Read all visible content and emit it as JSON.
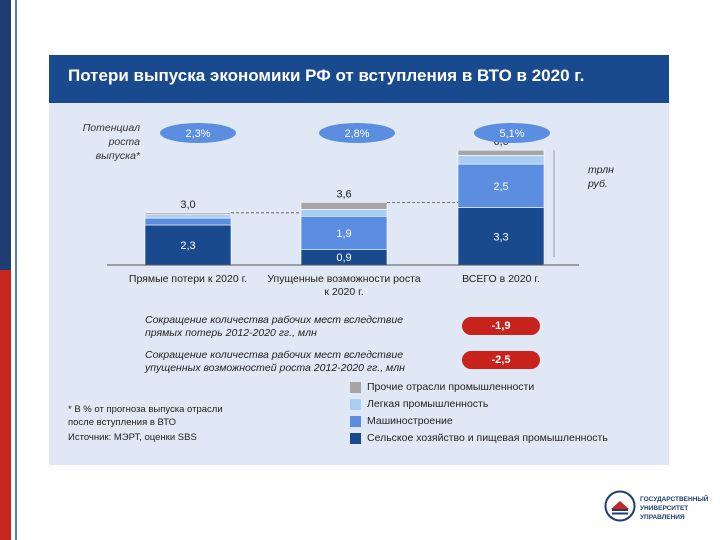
{
  "slide": {
    "title": "Потери выпуска экономики РФ от вступления в ВТО в 2020 г."
  },
  "chart_data": {
    "type": "bar",
    "stacked": true,
    "categories": [
      "Прямые потери к 2020 г.",
      "Упущенные возможности роста к 2020 г.",
      "ВСЕГО в 2020 г."
    ],
    "potential_label": "Потенциал роста выпуска*",
    "potential_values": [
      "2,3%",
      "2,8%",
      "5,1%"
    ],
    "totals": [
      "3,0",
      "3,6",
      "6,6"
    ],
    "unit": "трлн руб.",
    "series": [
      {
        "name": "Сельское хозяйство и пищевая промышленность",
        "values": [
          2.3,
          0.9,
          3.3
        ],
        "labels": [
          "2,3",
          "0,9",
          "3,3"
        ],
        "color": "#1a4a8e"
      },
      {
        "name": "Машиностроение",
        "values": [
          0.4,
          1.9,
          2.5
        ],
        "labels": [
          "",
          "1,9",
          "2,5"
        ],
        "color": "#5b8ee0"
      },
      {
        "name": "Легкая промышленность",
        "values": [
          0.2,
          0.4,
          0.5
        ],
        "labels": [
          "",
          "",
          ""
        ],
        "color": "#a9cdf3"
      },
      {
        "name": "Прочие отрасли промышленности",
        "values": [
          0.1,
          0.4,
          0.3
        ],
        "labels": [
          "",
          "",
          ""
        ],
        "color": "#a6a6a6"
      }
    ],
    "legend_position": "bottom-right"
  },
  "job_cuts": {
    "direct": {
      "text_line1": "Сокращение количества рабочих мест вследствие",
      "text_line2": "прямых потерь  2012-2020 гг., млн",
      "value": "-1,9"
    },
    "missed": {
      "text_line1": "Сокращение количества рабочих мест вследствие",
      "text_line2": "упущенных возможностей роста 2012-2020 гг., млн",
      "value": "-2,5"
    }
  },
  "footnotes": {
    "line1": "* В % от прогноза выпуска отрасли",
    "line2": "после вступления в ВТО",
    "source": "Источник: МЭРТ, оценки SBS"
  },
  "logo": {
    "line1": "ГОСУДАРСТВЕННЫЙ",
    "line2": "УНИВЕРСИТЕТ",
    "line3": "УПРАВЛЕНИЯ"
  },
  "colors": {
    "title_bar": "#1a4a8e",
    "panel": "#dfe8f4",
    "pill_blue": "#5b8ee0",
    "pill_red": "#c8221c"
  }
}
